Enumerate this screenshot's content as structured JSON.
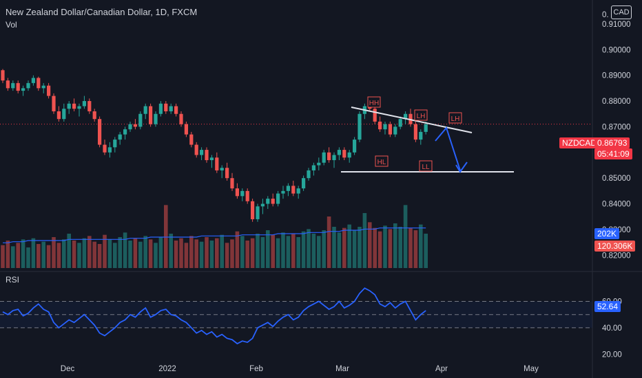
{
  "header": {
    "symbol_title": "New Zealand Dollar/Canadian Dollar, 1D, FXCM",
    "volume_label": "Vol",
    "currency_button": "CAD"
  },
  "price_axis": {
    "ticks": [
      "0.91000",
      "0.90000",
      "0.89000",
      "0.88000",
      "0.87000",
      "0.86000",
      "0.85000",
      "0.84000",
      "0.83000",
      "0.82000"
    ],
    "top_partial": "0."
  },
  "time_axis": {
    "labels": [
      "Dec",
      "2022",
      "Feb",
      "Mar",
      "Apr",
      "May"
    ]
  },
  "badges": {
    "symbol": "NZDCAD",
    "price": "0.86793",
    "countdown": "05:41:09",
    "vol_ma": "202K",
    "volume": "120.306K"
  },
  "rsi": {
    "label": "RSI",
    "ticks": [
      "60.00",
      "40.00",
      "20.00"
    ],
    "current": "52.64"
  },
  "annotations": [
    "HH",
    "LH",
    "LH",
    "HL",
    "LL"
  ],
  "colors": {
    "background": "#131722",
    "up": "#26a69a",
    "down": "#ef5350",
    "rsi_line": "#2962ff",
    "price_line": "#f23645"
  },
  "chart_data": {
    "type": "candlestick",
    "price_ylim": [
      0.815,
      0.918
    ],
    "candles": [
      [
        0.892,
        0.8925,
        0.887,
        0.888
      ],
      [
        0.888,
        0.889,
        0.884,
        0.885
      ],
      [
        0.885,
        0.888,
        0.884,
        0.887
      ],
      [
        0.887,
        0.888,
        0.883,
        0.884
      ],
      [
        0.884,
        0.886,
        0.882,
        0.885
      ],
      [
        0.885,
        0.888,
        0.884,
        0.887
      ],
      [
        0.887,
        0.89,
        0.886,
        0.889
      ],
      [
        0.889,
        0.8895,
        0.884,
        0.885
      ],
      [
        0.885,
        0.887,
        0.883,
        0.886
      ],
      [
        0.886,
        0.887,
        0.881,
        0.882
      ],
      [
        0.882,
        0.883,
        0.875,
        0.876
      ],
      [
        0.876,
        0.878,
        0.872,
        0.873
      ],
      [
        0.873,
        0.879,
        0.872,
        0.877
      ],
      [
        0.877,
        0.88,
        0.875,
        0.879
      ],
      [
        0.879,
        0.881,
        0.876,
        0.877
      ],
      [
        0.877,
        0.879,
        0.874,
        0.878
      ],
      [
        0.878,
        0.882,
        0.877,
        0.88
      ],
      [
        0.88,
        0.881,
        0.875,
        0.876
      ],
      [
        0.876,
        0.877,
        0.872,
        0.873
      ],
      [
        0.873,
        0.874,
        0.862,
        0.863
      ],
      [
        0.863,
        0.865,
        0.859,
        0.86
      ],
      [
        0.86,
        0.864,
        0.858,
        0.862
      ],
      [
        0.862,
        0.866,
        0.86,
        0.865
      ],
      [
        0.865,
        0.868,
        0.863,
        0.867
      ],
      [
        0.867,
        0.87,
        0.865,
        0.869
      ],
      [
        0.869,
        0.872,
        0.868,
        0.871
      ],
      [
        0.871,
        0.873,
        0.869,
        0.87
      ],
      [
        0.87,
        0.876,
        0.869,
        0.875
      ],
      [
        0.875,
        0.879,
        0.873,
        0.878
      ],
      [
        0.878,
        0.879,
        0.87,
        0.871
      ],
      [
        0.871,
        0.876,
        0.87,
        0.875
      ],
      [
        0.875,
        0.88,
        0.874,
        0.879
      ],
      [
        0.879,
        0.88,
        0.875,
        0.876
      ],
      [
        0.876,
        0.879,
        0.875,
        0.878
      ],
      [
        0.878,
        0.879,
        0.874,
        0.875
      ],
      [
        0.875,
        0.876,
        0.87,
        0.871
      ],
      [
        0.871,
        0.872,
        0.866,
        0.867
      ],
      [
        0.867,
        0.868,
        0.862,
        0.863
      ],
      [
        0.863,
        0.864,
        0.858,
        0.859
      ],
      [
        0.859,
        0.862,
        0.857,
        0.861
      ],
      [
        0.861,
        0.862,
        0.856,
        0.857
      ],
      [
        0.857,
        0.859,
        0.854,
        0.858
      ],
      [
        0.858,
        0.86,
        0.852,
        0.853
      ],
      [
        0.853,
        0.855,
        0.85,
        0.854
      ],
      [
        0.854,
        0.856,
        0.849,
        0.85
      ],
      [
        0.85,
        0.852,
        0.845,
        0.846
      ],
      [
        0.846,
        0.848,
        0.842,
        0.843
      ],
      [
        0.843,
        0.846,
        0.841,
        0.845
      ],
      [
        0.845,
        0.846,
        0.84,
        0.841
      ],
      [
        0.841,
        0.842,
        0.833,
        0.834
      ],
      [
        0.834,
        0.84,
        0.833,
        0.839
      ],
      [
        0.839,
        0.842,
        0.836,
        0.84
      ],
      [
        0.84,
        0.843,
        0.838,
        0.842
      ],
      [
        0.842,
        0.844,
        0.839,
        0.84
      ],
      [
        0.84,
        0.845,
        0.839,
        0.844
      ],
      [
        0.844,
        0.847,
        0.842,
        0.845
      ],
      [
        0.845,
        0.848,
        0.843,
        0.847
      ],
      [
        0.847,
        0.849,
        0.843,
        0.844
      ],
      [
        0.844,
        0.847,
        0.842,
        0.846
      ],
      [
        0.846,
        0.851,
        0.845,
        0.85
      ],
      [
        0.85,
        0.854,
        0.849,
        0.853
      ],
      [
        0.853,
        0.856,
        0.851,
        0.855
      ],
      [
        0.855,
        0.858,
        0.853,
        0.856
      ],
      [
        0.856,
        0.861,
        0.855,
        0.86
      ],
      [
        0.86,
        0.862,
        0.856,
        0.857
      ],
      [
        0.857,
        0.86,
        0.854,
        0.859
      ],
      [
        0.859,
        0.862,
        0.857,
        0.861
      ],
      [
        0.861,
        0.862,
        0.857,
        0.858
      ],
      [
        0.858,
        0.861,
        0.856,
        0.86
      ],
      [
        0.86,
        0.866,
        0.859,
        0.865
      ],
      [
        0.865,
        0.876,
        0.864,
        0.875
      ],
      [
        0.875,
        0.879,
        0.873,
        0.878
      ],
      [
        0.878,
        0.88,
        0.876,
        0.877
      ],
      [
        0.877,
        0.878,
        0.871,
        0.872
      ],
      [
        0.872,
        0.874,
        0.868,
        0.869
      ],
      [
        0.869,
        0.872,
        0.867,
        0.871
      ],
      [
        0.871,
        0.872,
        0.866,
        0.867
      ],
      [
        0.867,
        0.871,
        0.866,
        0.87
      ],
      [
        0.87,
        0.874,
        0.869,
        0.873
      ],
      [
        0.873,
        0.876,
        0.871,
        0.875
      ],
      [
        0.875,
        0.877,
        0.87,
        0.871
      ],
      [
        0.871,
        0.872,
        0.864,
        0.865
      ],
      [
        0.865,
        0.869,
        0.863,
        0.868
      ],
      [
        0.868,
        0.872,
        0.867,
        0.871
      ]
    ],
    "volume": [
      20,
      24,
      19,
      22,
      25,
      18,
      26,
      21,
      23,
      20,
      27,
      22,
      25,
      30,
      24,
      22,
      26,
      28,
      23,
      21,
      29,
      25,
      22,
      27,
      31,
      24,
      26,
      23,
      28,
      25,
      22,
      27,
      55,
      30,
      24,
      26,
      22,
      28,
      25,
      23,
      27,
      24,
      26,
      29,
      22,
      25,
      32,
      28,
      24,
      26,
      30,
      27,
      33,
      29,
      26,
      31,
      28,
      30,
      27,
      32,
      34,
      30,
      28,
      33,
      45,
      36,
      31,
      35,
      38,
      33,
      36,
      48,
      40,
      35,
      32,
      37,
      34,
      39,
      36,
      55,
      35,
      33,
      38,
      30
    ],
    "volume_ma": [
      22,
      22,
      23,
      23,
      23,
      24,
      24,
      24,
      24,
      24,
      24,
      24,
      24,
      25,
      25,
      25,
      25,
      25,
      25,
      25,
      25,
      25,
      25,
      25,
      25,
      26,
      26,
      26,
      26,
      27,
      27,
      27,
      27,
      27,
      27,
      27,
      27,
      27,
      27,
      28,
      28,
      28,
      28,
      28,
      28,
      28,
      28,
      29,
      29,
      29,
      29,
      29,
      29,
      29,
      30,
      30,
      30,
      30,
      30,
      30,
      31,
      31,
      31,
      31,
      32,
      32,
      32,
      33,
      33,
      33,
      33,
      34,
      34,
      34,
      35,
      35,
      35,
      35,
      35,
      35,
      35,
      35,
      35,
      35
    ],
    "rsi": [
      52,
      50,
      53,
      54,
      49,
      51,
      55,
      58,
      54,
      52,
      44,
      40,
      43,
      46,
      44,
      47,
      50,
      46,
      42,
      36,
      34,
      37,
      40,
      44,
      46,
      50,
      48,
      52,
      55,
      48,
      50,
      53,
      54,
      50,
      49,
      46,
      44,
      40,
      36,
      38,
      35,
      37,
      33,
      35,
      32,
      31,
      28,
      30,
      29,
      32,
      40,
      42,
      44,
      41,
      45,
      48,
      50,
      46,
      48,
      53,
      56,
      58,
      60,
      57,
      54,
      56,
      60,
      55,
      57,
      60,
      66,
      70,
      68,
      65,
      58,
      56,
      59,
      55,
      58,
      60,
      53,
      46,
      50,
      53
    ],
    "rsi_ylim": [
      15,
      80
    ]
  }
}
